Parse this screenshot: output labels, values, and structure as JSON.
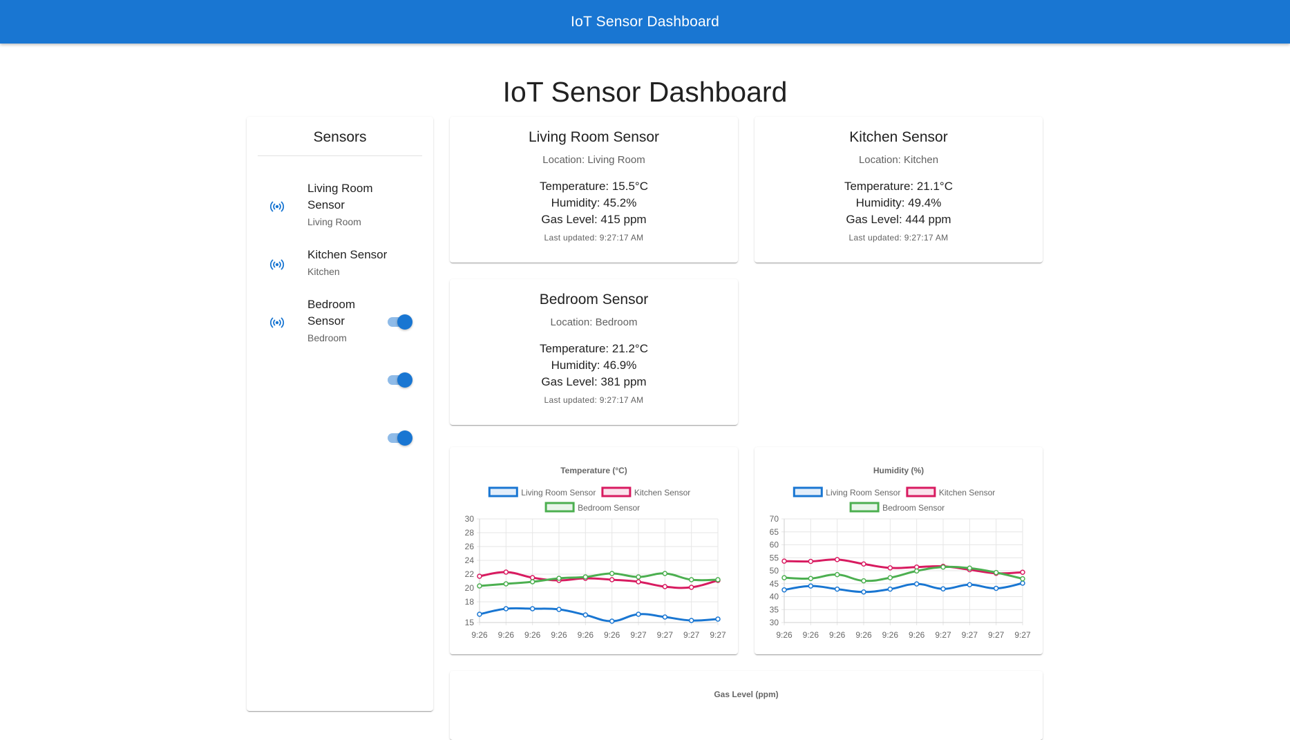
{
  "appbar": {
    "title": "IoT Sensor Dashboard"
  },
  "page": {
    "title": "IoT Sensor Dashboard"
  },
  "sidebar": {
    "title": "Sensors",
    "items": [
      {
        "name": "Living Room Sensor",
        "location": "Living Room",
        "enabled": true,
        "icon": "sensor-signal-icon"
      },
      {
        "name": "Kitchen Sensor",
        "location": "Kitchen",
        "enabled": true,
        "icon": "sensor-signal-icon"
      },
      {
        "name": "Bedroom Sensor",
        "location": "Bedroom",
        "enabled": true,
        "icon": "sensor-signal-icon"
      }
    ]
  },
  "cards": [
    {
      "title": "Living Room Sensor",
      "location": "Location: Living Room",
      "temperature": "Temperature: 15.5°C",
      "humidity": "Humidity: 45.2%",
      "gas": "Gas Level: 415 ppm",
      "updated": "Last updated: 9:27:17 AM"
    },
    {
      "title": "Kitchen Sensor",
      "location": "Location: Kitchen",
      "temperature": "Temperature: 21.1°C",
      "humidity": "Humidity: 49.4%",
      "gas": "Gas Level: 444 ppm",
      "updated": "Last updated: 9:27:17 AM"
    },
    {
      "title": "Bedroom Sensor",
      "location": "Location: Bedroom",
      "temperature": "Temperature: 21.2°C",
      "humidity": "Humidity: 46.9%",
      "gas": "Gas Level: 381 ppm",
      "updated": "Last updated: 9:27:17 AM"
    }
  ],
  "colors": {
    "primary": "#1976d2",
    "living_room": "#1976d2",
    "kitchen": "#d81b60",
    "bedroom": "#4caf50"
  },
  "chart_data": [
    {
      "type": "line",
      "title": "Temperature (°C)",
      "xlabel": "",
      "ylabel": "",
      "categories": [
        "9:26",
        "9:26",
        "9:26",
        "9:26",
        "9:26",
        "9:26",
        "9:27",
        "9:27",
        "9:27",
        "9:27"
      ],
      "ylim": [
        15,
        30
      ],
      "yticks": [
        15,
        18,
        20,
        22,
        24,
        26,
        28,
        30
      ],
      "legend": "top",
      "series": [
        {
          "name": "Living Room Sensor",
          "color": "#1976d2",
          "values": [
            16.2,
            17.0,
            17.0,
            16.9,
            16.1,
            15.2,
            16.2,
            15.8,
            15.3,
            15.5
          ]
        },
        {
          "name": "Kitchen Sensor",
          "color": "#d81b60",
          "values": [
            21.7,
            22.3,
            21.5,
            21.1,
            21.4,
            21.2,
            20.9,
            20.2,
            20.1,
            21.1
          ]
        },
        {
          "name": "Bedroom Sensor",
          "color": "#4caf50",
          "values": [
            20.3,
            20.6,
            20.9,
            21.4,
            21.6,
            22.1,
            21.6,
            22.1,
            21.2,
            21.2
          ]
        }
      ]
    },
    {
      "type": "line",
      "title": "Humidity (%)",
      "xlabel": "",
      "ylabel": "",
      "categories": [
        "9:26",
        "9:26",
        "9:26",
        "9:26",
        "9:26",
        "9:26",
        "9:27",
        "9:27",
        "9:27",
        "9:27"
      ],
      "ylim": [
        30,
        70
      ],
      "yticks": [
        30,
        35,
        40,
        45,
        50,
        55,
        60,
        65,
        70
      ],
      "legend": "top",
      "series": [
        {
          "name": "Living Room Sensor",
          "color": "#1976d2",
          "values": [
            42.6,
            44.1,
            42.9,
            41.8,
            42.9,
            44.9,
            43.0,
            44.6,
            43.2,
            45.2
          ]
        },
        {
          "name": "Kitchen Sensor",
          "color": "#d81b60",
          "values": [
            53.7,
            53.6,
            54.3,
            52.6,
            51.1,
            51.4,
            51.7,
            50.4,
            49.0,
            49.4
          ]
        },
        {
          "name": "Bedroom Sensor",
          "color": "#4caf50",
          "values": [
            47.3,
            47.0,
            48.5,
            46.1,
            47.3,
            49.9,
            51.4,
            51.0,
            49.3,
            46.9
          ]
        }
      ]
    },
    {
      "type": "line",
      "title": "Gas Level (ppm)"
    }
  ]
}
